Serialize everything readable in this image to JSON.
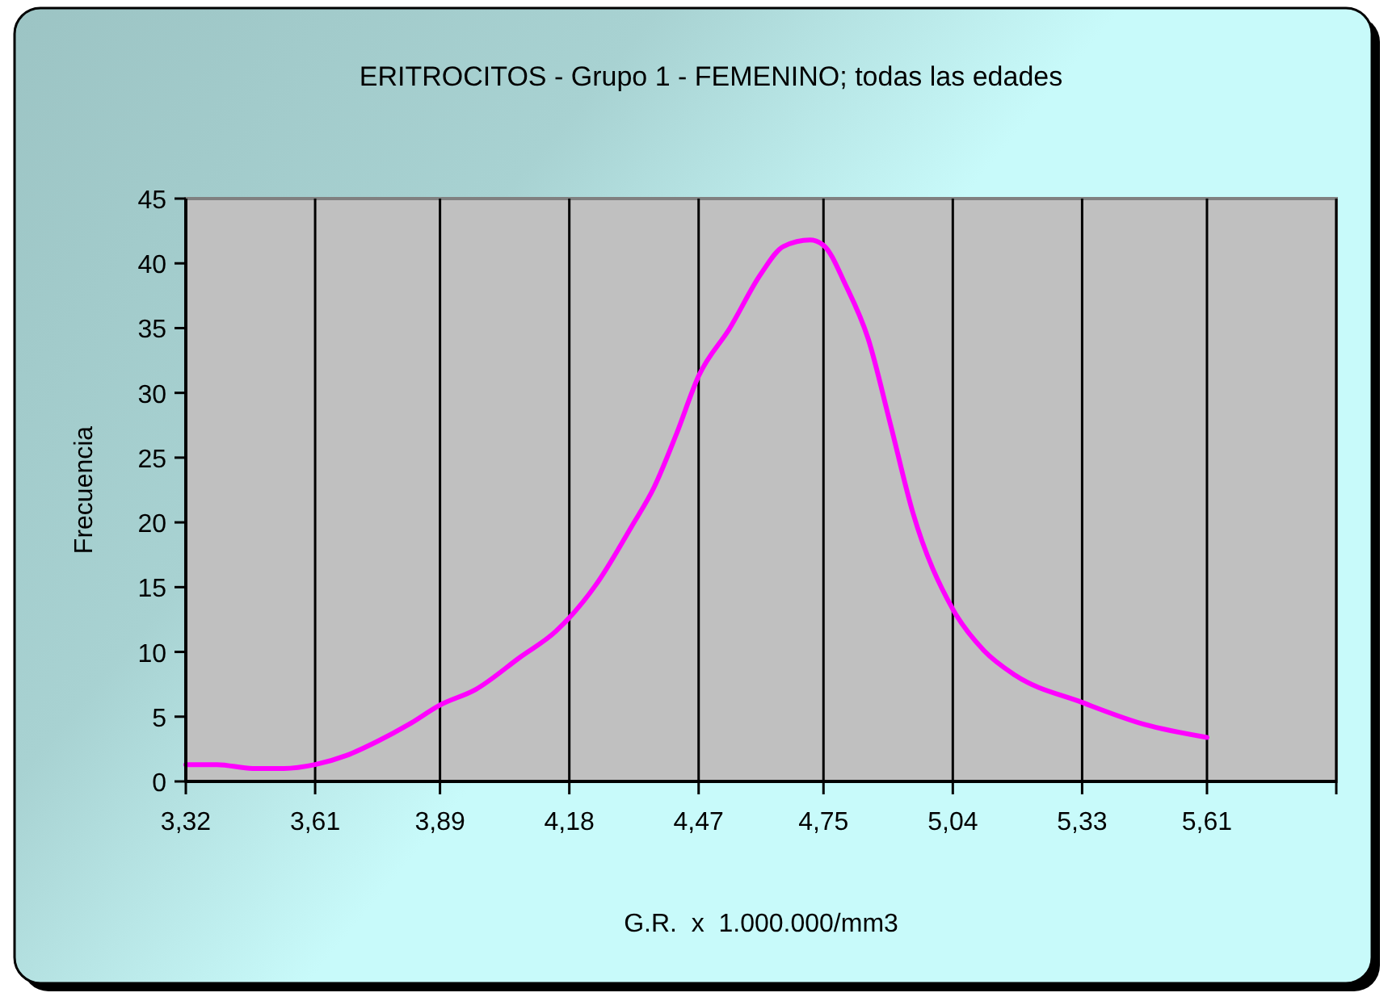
{
  "chart_data": {
    "type": "line",
    "title": "ERITROCITOS - Grupo 1 - FEMENINO; todas las edades",
    "xlabel": "G.R.  x  1.000.000/mm3",
    "ylabel": "Frecuencia",
    "x": [
      3.32,
      3.39,
      3.47,
      3.54,
      3.61,
      3.68,
      3.75,
      3.82,
      3.89,
      3.97,
      4.07,
      4.15,
      4.24,
      4.32,
      4.37,
      4.42,
      4.47,
      4.54,
      4.61,
      4.66,
      4.72,
      4.75,
      4.8,
      4.85,
      4.9,
      4.95,
      5.04,
      5.11,
      5.18,
      5.33,
      5.47,
      5.61
    ],
    "series": [
      {
        "color": "#ff00ff",
        "values": [
          1.3,
          1.3,
          1.0,
          1.0,
          1.3,
          2.0,
          3.1,
          4.4,
          5.9,
          7.1,
          9.6,
          11.6,
          15.2,
          19.7,
          22.7,
          26.8,
          31.3,
          35.0,
          39.2,
          41.3,
          41.8,
          41.4,
          38.3,
          34.2,
          27.6,
          20.8,
          13.3,
          10.1,
          8.2,
          6.1,
          4.4,
          3.4
        ]
      }
    ],
    "xlim": [
      3.32,
      5.9
    ],
    "xticks": [
      {
        "value": 3.32,
        "label": "3,32"
      },
      {
        "value": 3.61,
        "label": "3,61"
      },
      {
        "value": 3.89,
        "label": "3,89"
      },
      {
        "value": 4.18,
        "label": "4,18"
      },
      {
        "value": 4.47,
        "label": "4,47"
      },
      {
        "value": 4.75,
        "label": "4,75"
      },
      {
        "value": 5.04,
        "label": "5,04"
      },
      {
        "value": 5.33,
        "label": "5,33"
      },
      {
        "value": 5.61,
        "label": "5,61"
      },
      {
        "value": 5.9,
        "label": null
      }
    ],
    "ylim": [
      0,
      45
    ],
    "yticks": [
      0,
      5,
      10,
      15,
      20,
      25,
      30,
      35,
      40,
      45
    ],
    "grid": "x",
    "marker": "none",
    "line_style": "solid"
  }
}
